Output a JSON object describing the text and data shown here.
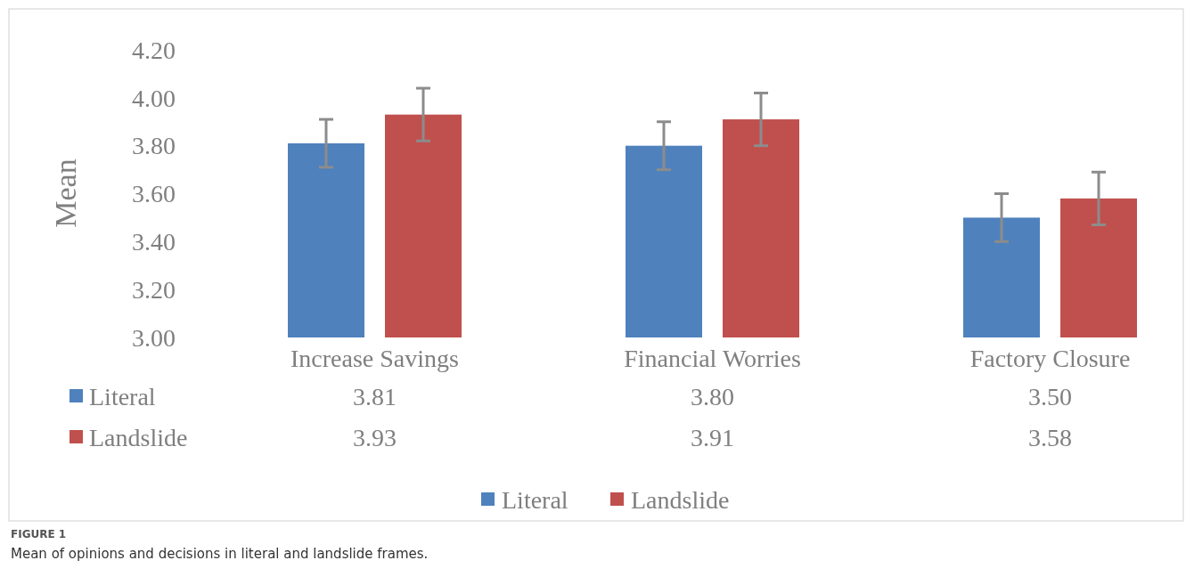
{
  "chart_data": {
    "type": "bar",
    "ylabel": "Mean",
    "categories": [
      "Increase Savings",
      "Financial Worries",
      "Factory Closure"
    ],
    "series": [
      {
        "name": "Literal",
        "color": "#4f81bd",
        "values": [
          3.81,
          3.8,
          3.5
        ],
        "value_labels": [
          "3.81",
          "3.80",
          "3.50"
        ],
        "errors": [
          0.1,
          0.1,
          0.1
        ]
      },
      {
        "name": "Landslide",
        "color": "#c0504d",
        "values": [
          3.93,
          3.91,
          3.58
        ],
        "value_labels": [
          "3.93",
          "3.91",
          "3.58"
        ],
        "errors": [
          0.11,
          0.11,
          0.11
        ]
      }
    ],
    "ylim": [
      3.0,
      4.2
    ],
    "yticks": [
      {
        "value": 3,
        "label": "3.00"
      },
      {
        "value": 3.2,
        "label": "3.20"
      },
      {
        "value": 3.4,
        "label": "3.40"
      },
      {
        "value": 3.6,
        "label": "3.60"
      },
      {
        "value": 3.8,
        "label": "3.80"
      },
      {
        "value": 4,
        "label": "4.00"
      },
      {
        "value": 4.2,
        "label": "4.20"
      }
    ],
    "legend": "bottom",
    "grid": false,
    "annotations": [
      "FIGURE 1",
      "Mean of opinions and decisions in literal and landslide frames."
    ]
  }
}
